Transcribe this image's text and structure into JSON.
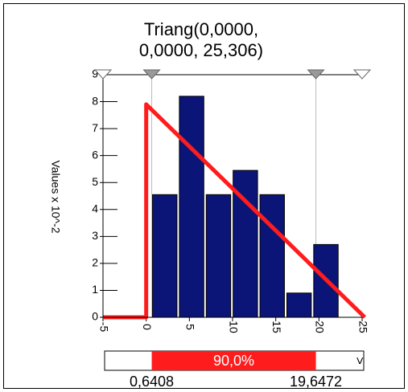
{
  "chart_data": {
    "type": "histogram",
    "title_lines": [
      "Triang(0,0000,",
      "0,0000, 25,306)"
    ],
    "y_label": "Values x 10^-2",
    "bins": [
      0.6408,
      3.75,
      6.86,
      9.97,
      13.08,
      16.19,
      19.3,
      22.41
    ],
    "values": [
      4.55,
      8.2,
      4.55,
      5.45,
      4.55,
      0.9,
      2.7
    ],
    "color": "#0b1577",
    "fit": {
      "type": "line",
      "color": "#ff1c1c",
      "x": [
        -5,
        0,
        0,
        25.306
      ],
      "values": [
        0,
        0,
        7.9,
        0
      ]
    },
    "xlim": [
      -5,
      25
    ],
    "ylim": [
      0,
      9
    ],
    "xticks": [
      -5,
      0,
      5,
      10,
      15,
      20,
      25
    ],
    "yticks": [
      0,
      1,
      2,
      3,
      4,
      5,
      6,
      7,
      8,
      9
    ],
    "delimiters": [
      {
        "value": 0.6408,
        "label": "0,6408"
      },
      {
        "value": 19.6472,
        "label": "19,6472"
      }
    ],
    "probability": {
      "value": 90.0,
      "label": "90,0%",
      "color": "#ff1c1c"
    },
    "right_marker": ">"
  }
}
